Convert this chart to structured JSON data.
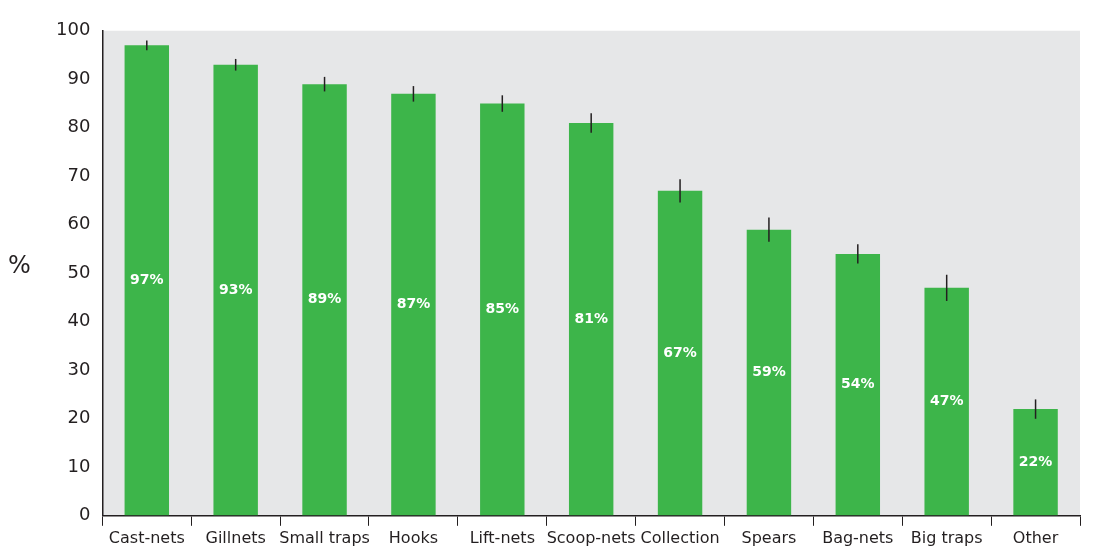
{
  "chart_data": {
    "type": "bar",
    "ylabel": "%",
    "categories": [
      "Cast-nets",
      "Gillnets",
      "Small traps",
      "Hooks",
      "Lift-nets",
      "Scoop-nets",
      "Collection",
      "Spears",
      "Bag-nets",
      "Big traps",
      "Other"
    ],
    "values": [
      97,
      93,
      89,
      87,
      85,
      81,
      67,
      59,
      54,
      47,
      22
    ],
    "errors": [
      1,
      1.2,
      1.5,
      1.6,
      1.7,
      2,
      2.4,
      2.5,
      2,
      2.7,
      2
    ],
    "color": "#3db54a",
    "ylim": [
      0,
      100
    ],
    "yticks": [
      0,
      10,
      20,
      30,
      40,
      50,
      60,
      70,
      80,
      90,
      100
    ],
    "value_labels": [
      "97%",
      "93%",
      "89%",
      "87%",
      "85%",
      "81%",
      "67%",
      "59%",
      "54%",
      "47%",
      "22%"
    ],
    "grid": false,
    "legend": false
  }
}
